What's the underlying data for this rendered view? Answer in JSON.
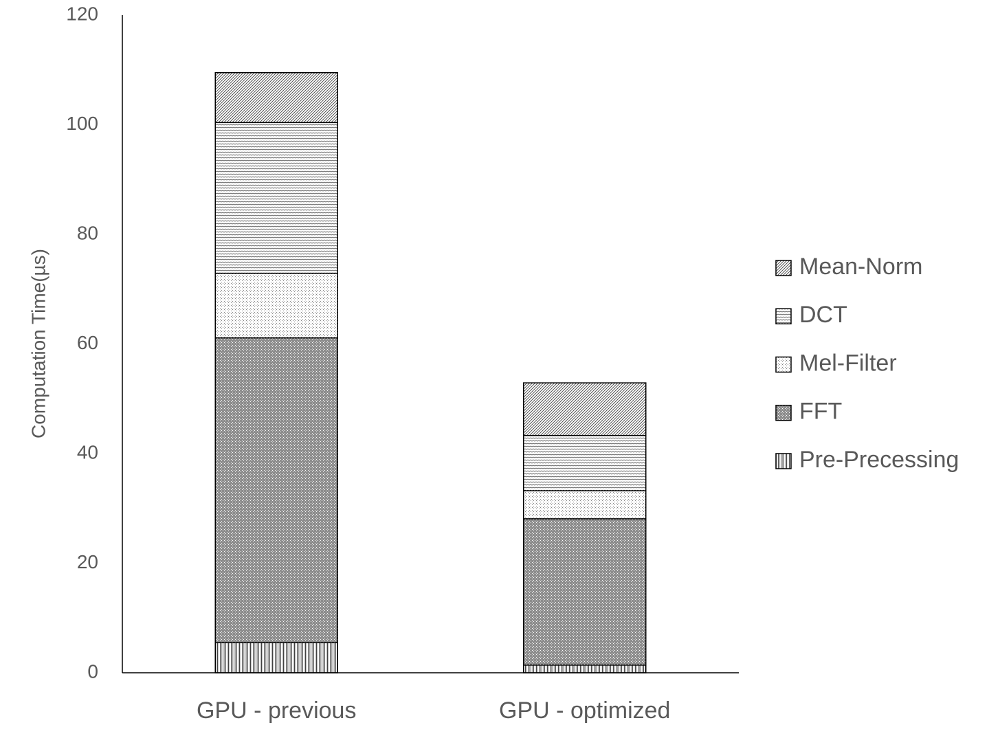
{
  "chart_data": {
    "type": "stacked_bar",
    "y_label": "Computation Time(µs)",
    "categories": [
      "GPU - previous",
      "GPU - optimized"
    ],
    "series": [
      {
        "name": "Pre-Precessing",
        "color": "#404040",
        "values": [
          5.5,
          1.4
        ]
      },
      {
        "name": "FFT",
        "color": "#303030",
        "values": [
          55.6,
          26.7
        ]
      },
      {
        "name": "Mel-Filter",
        "color": "#808080",
        "values": [
          11.8,
          5.1
        ]
      },
      {
        "name": "DCT",
        "color": "#505050",
        "values": [
          27.5,
          10.1
        ]
      },
      {
        "name": "Mean-Norm",
        "color": "#404040",
        "values": [
          9.1,
          9.6
        ]
      }
    ],
    "ylim": [
      0,
      120
    ],
    "yticks": [
      0,
      20,
      40,
      60,
      80,
      100,
      120
    ],
    "grid": false,
    "legend": "right"
  }
}
